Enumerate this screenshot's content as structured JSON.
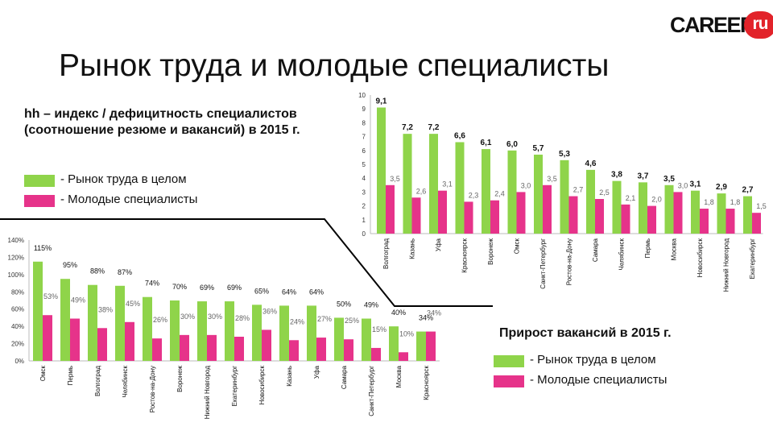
{
  "logo": {
    "word": "CAREER",
    "badge": "ru"
  },
  "title": "Рынок труда и молодые специалисты",
  "colors": {
    "total": "#8fd44a",
    "young": "#e6338a",
    "logo_red": "#e2232a"
  },
  "chart1": {
    "title": "hh – индекс / дефицитность специалистов (соотношение резюме и вакансий) в 2015 г.",
    "legend": [
      "- Рынок труда в целом",
      "- Молодые специалисты"
    ]
  },
  "chart2": {
    "title": "Прирост вакансий в 2015 г.",
    "legend": [
      "- Рынок труда в целом",
      "- Молодые специалисты"
    ]
  },
  "chart_data": [
    {
      "type": "bar",
      "categories": [
        "Волгоград",
        "Казань",
        "Уфа",
        "Красноярск",
        "Воронеж",
        "Омск",
        "Санкт-Петербург",
        "Ростов-на-Дону",
        "Самара",
        "Челябинск",
        "Пермь",
        "Москва",
        "Новосибирск",
        "Нижний Новгород",
        "Екатеринбург"
      ],
      "series": [
        {
          "name": "Рынок труда в целом",
          "values": [
            9.1,
            7.2,
            7.2,
            6.6,
            6.1,
            6.0,
            5.7,
            5.3,
            4.6,
            3.8,
            3.7,
            3.5,
            3.1,
            2.9,
            2.7
          ],
          "labels": [
            "9,1",
            "7,2",
            "7,2",
            "6,6",
            "6,1",
            "6,0",
            "5,7",
            "5,3",
            "4,6",
            "3,8",
            "3,7",
            "3,5",
            "3,1",
            "2,9",
            "2,7"
          ]
        },
        {
          "name": "Молодые специалисты",
          "values": [
            3.5,
            2.6,
            3.1,
            2.3,
            2.4,
            3.0,
            3.5,
            2.7,
            2.5,
            2.1,
            2.0,
            3.0,
            1.8,
            1.8,
            1.5
          ],
          "labels": [
            "3,5",
            "2,6",
            "3,1",
            "2,3",
            "2,4",
            "3,0",
            "3,5",
            "2,7",
            "2,5",
            "2,1",
            "2,0",
            "3,0",
            "1,8",
            "1,8",
            "1,5"
          ]
        }
      ],
      "ylim": [
        0,
        10
      ],
      "yticks": [
        "0",
        "1",
        "2",
        "3",
        "4",
        "5",
        "6",
        "7",
        "8",
        "9",
        "10"
      ],
      "grid": false
    },
    {
      "type": "bar",
      "categories": [
        "Омск",
        "Пермь",
        "Волгоград",
        "Челябинск",
        "Ростов-на-Дону",
        "Воронеж",
        "Нижний Новгород",
        "Екатеринбург",
        "Новосибирск",
        "Казань",
        "Уфа",
        "Самара",
        "Санкт-Петербург",
        "Москва",
        "Красноярск"
      ],
      "series": [
        {
          "name": "Рынок труда в целом",
          "values": [
            115,
            95,
            88,
            87,
            74,
            70,
            69,
            69,
            65,
            64,
            64,
            50,
            49,
            40,
            34
          ],
          "labels": [
            "115%",
            "95%",
            "88%",
            "87%",
            "74%",
            "70%",
            "69%",
            "69%",
            "65%",
            "64%",
            "64%",
            "50%",
            "49%",
            "40%",
            "34%"
          ]
        },
        {
          "name": "Молодые специалисты",
          "values": [
            53,
            49,
            38,
            45,
            26,
            30,
            30,
            28,
            36,
            24,
            27,
            25,
            15,
            10,
            34
          ],
          "labels": [
            "53%",
            "49%",
            "38%",
            "45%",
            "26%",
            "30%",
            "30%",
            "28%",
            "36%",
            "24%",
            "27%",
            "25%",
            "15%",
            "10%",
            "34%"
          ]
        }
      ],
      "ylim": [
        0,
        140
      ],
      "yticks": [
        "0%",
        "20%",
        "40%",
        "60%",
        "80%",
        "100%",
        "120%",
        "140%"
      ],
      "grid": false
    }
  ]
}
